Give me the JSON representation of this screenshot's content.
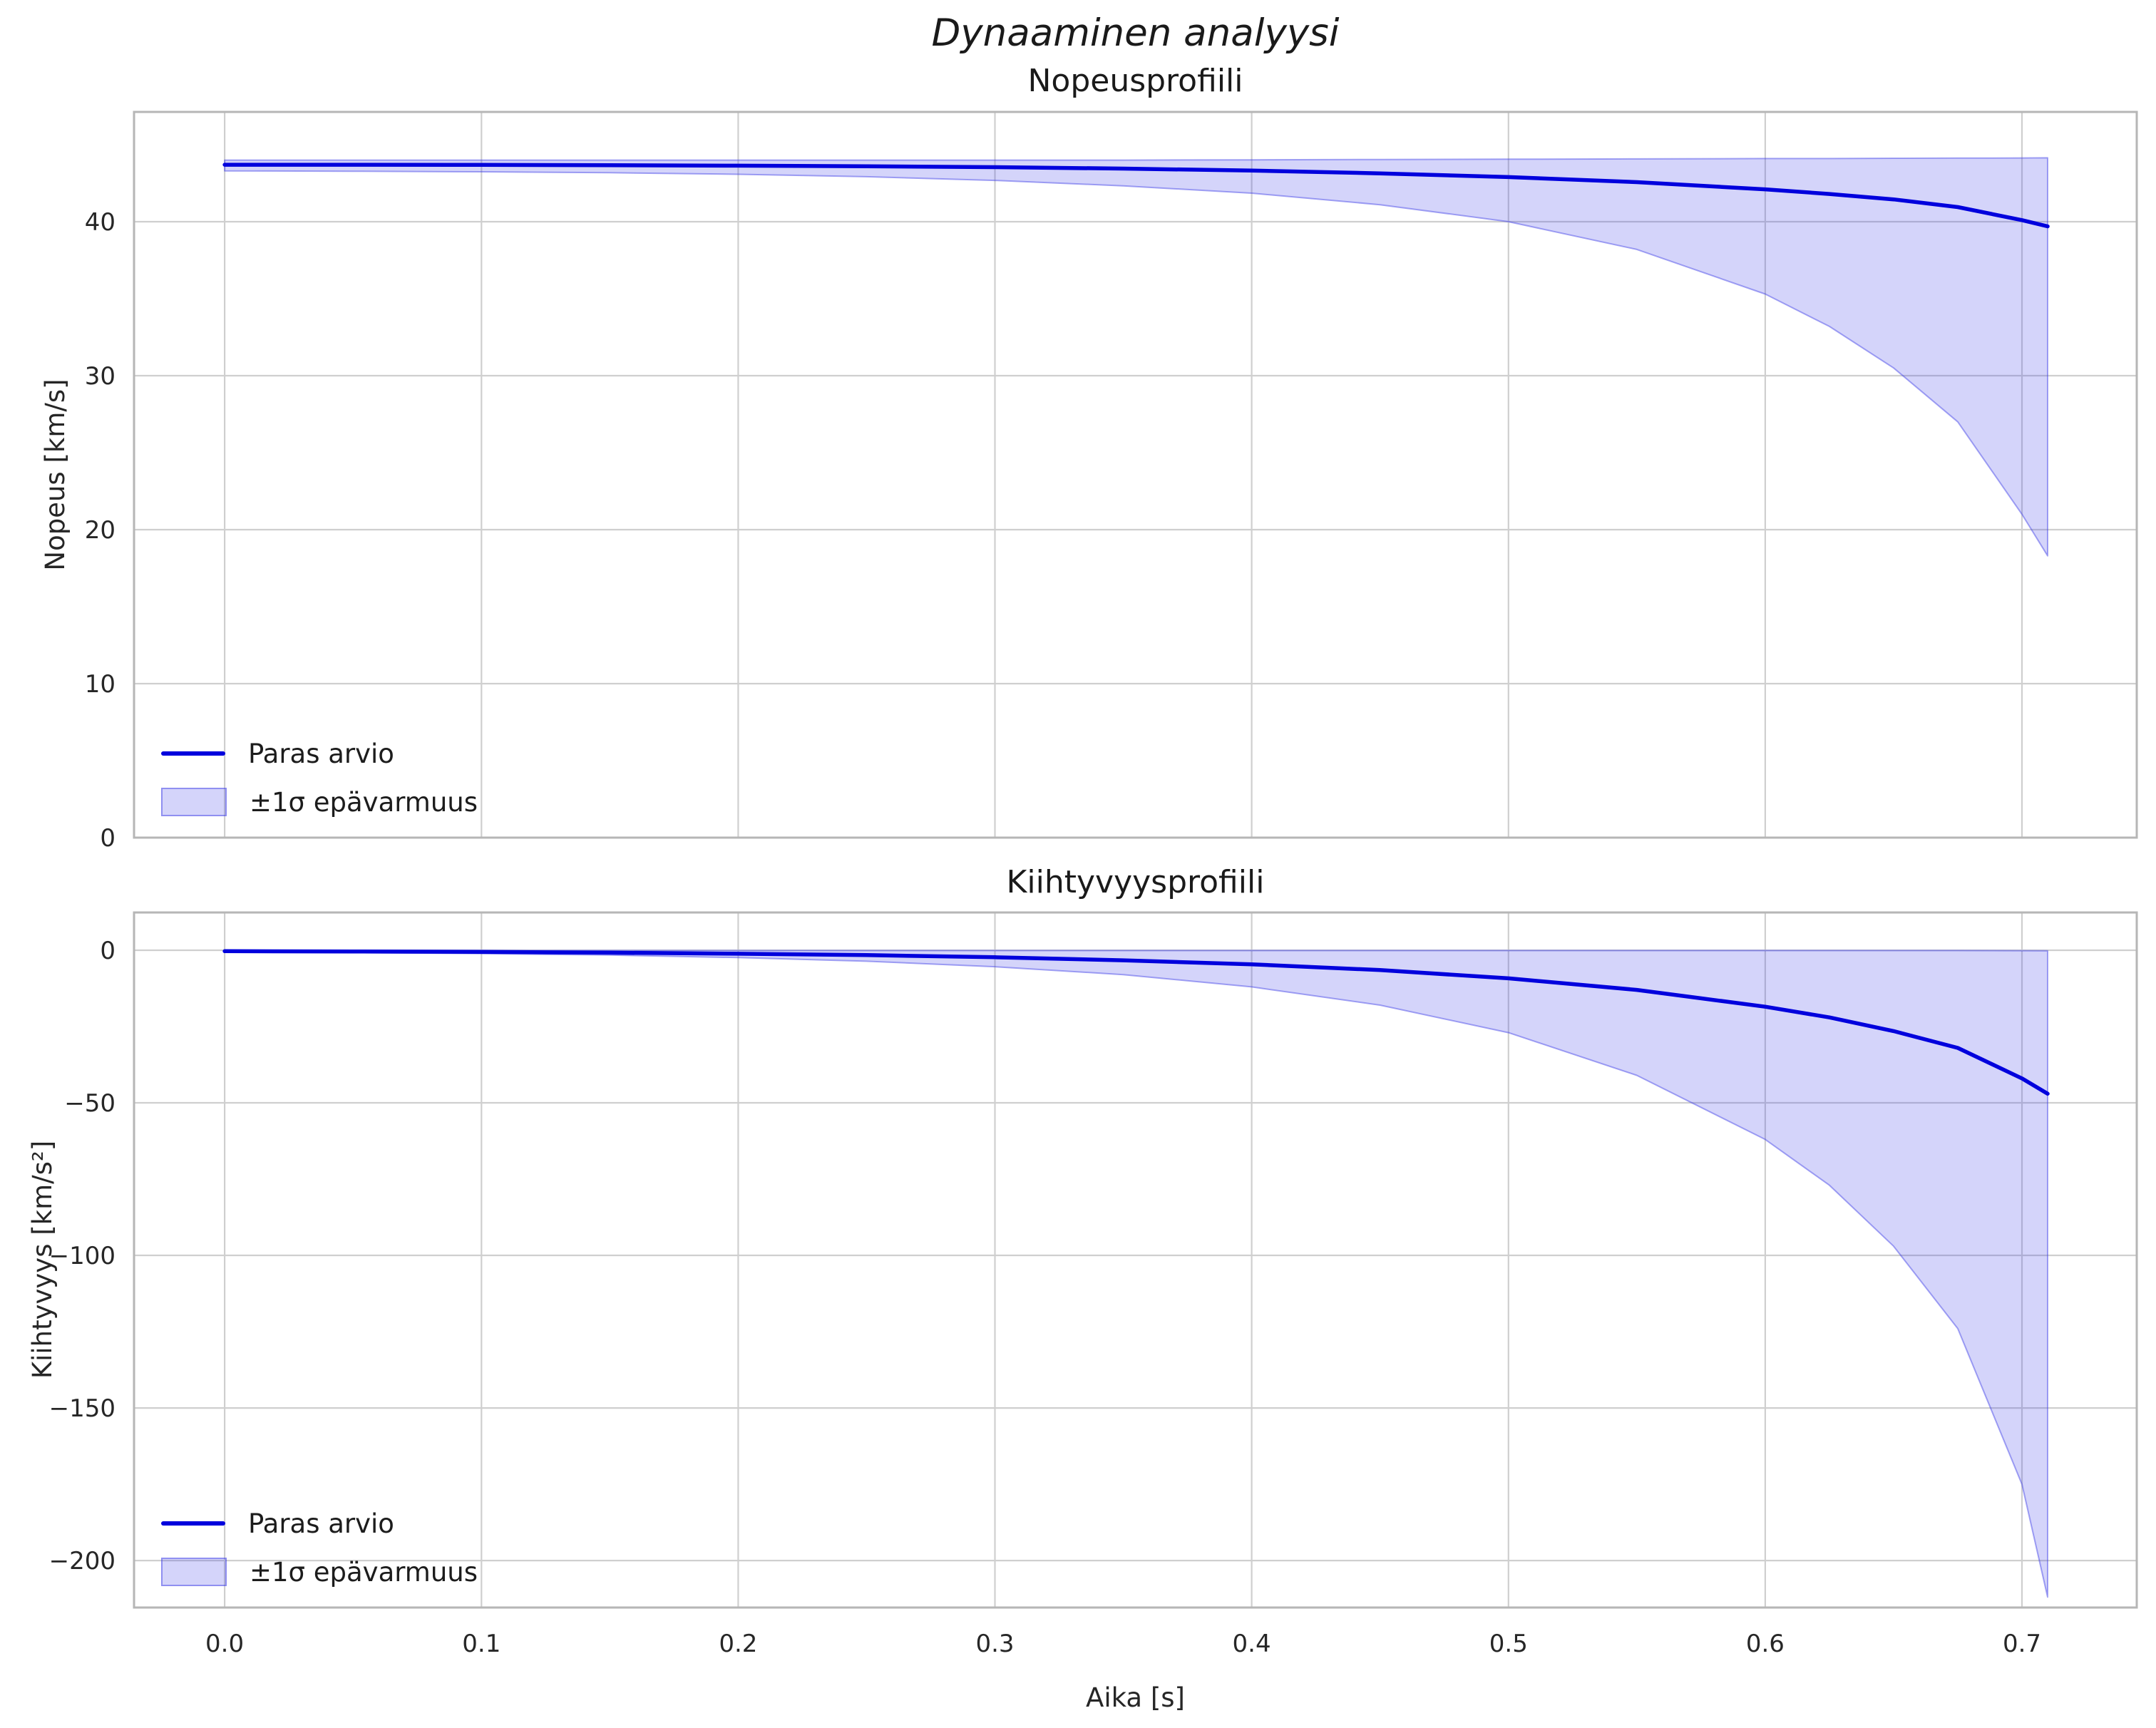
{
  "figure": {
    "suptitle": "Dynaaminen analyysi"
  },
  "colors": {
    "line": "#0000dd",
    "band_fill": "rgba(60,60,230,0.22)",
    "band_edge": "rgba(60,60,230,0.45)",
    "grid": "#cfcfcf",
    "spine": "#b6b6b6",
    "tick_text": "#262626"
  },
  "chart_data": [
    {
      "type": "line",
      "title": "Nopeusprofiili",
      "xlabel": "",
      "ylabel": "Nopeus [km/s]",
      "x": [
        0,
        0.05,
        0.1,
        0.15,
        0.2,
        0.25,
        0.3,
        0.35,
        0.4,
        0.45,
        0.5,
        0.55,
        0.6,
        0.625,
        0.65,
        0.675,
        0.7,
        0.71
      ],
      "series": [
        {
          "name": "Paras arvio",
          "style": "line",
          "values": [
            43.7,
            43.7,
            43.69,
            43.67,
            43.64,
            43.6,
            43.54,
            43.45,
            43.32,
            43.14,
            42.9,
            42.57,
            42.1,
            41.8,
            41.45,
            40.95,
            40.1,
            39.7
          ]
        },
        {
          "name": "±1σ epävarmuus",
          "style": "band",
          "upper": [
            44.0,
            44.0,
            44.0,
            44.0,
            44.0,
            44.0,
            44.0,
            44.0,
            44.02,
            44.04,
            44.06,
            44.08,
            44.1,
            44.1,
            44.12,
            44.13,
            44.14,
            44.15
          ],
          "lower": [
            43.3,
            43.28,
            43.24,
            43.18,
            43.08,
            42.92,
            42.68,
            42.33,
            41.85,
            41.1,
            40.0,
            38.2,
            35.3,
            33.2,
            30.5,
            27.0,
            21.0,
            18.3
          ]
        }
      ],
      "xlim": [
        -0.0353,
        0.7447
      ],
      "ylim": [
        0,
        47.13
      ],
      "xtick_values": [
        0.0,
        0.1,
        0.2,
        0.3,
        0.4,
        0.5,
        0.6,
        0.7
      ],
      "xtick_labels": [
        "0.0",
        "0.1",
        "0.2",
        "0.3",
        "0.4",
        "0.5",
        "0.6",
        "0.7"
      ],
      "show_xtick_labels": false,
      "ytick_values": [
        0,
        10,
        20,
        30,
        40
      ],
      "ytick_labels": [
        "0",
        "10",
        "20",
        "30",
        "40"
      ],
      "grid": true,
      "legend_position": "lower left",
      "legend": [
        "Paras arvio",
        "±1σ epävarmuus"
      ]
    },
    {
      "type": "line",
      "title": "Kiihtyvyysprofiili",
      "xlabel": "Aika [s]",
      "ylabel": "Kiihtyvyys [km/s²]",
      "x": [
        0,
        0.05,
        0.1,
        0.15,
        0.2,
        0.25,
        0.3,
        0.35,
        0.4,
        0.45,
        0.5,
        0.55,
        0.6,
        0.625,
        0.65,
        0.675,
        0.7,
        0.71
      ],
      "series": [
        {
          "name": "Paras arvio",
          "style": "line",
          "values": [
            -0.3,
            -0.4,
            -0.55,
            -0.8,
            -1.15,
            -1.6,
            -2.3,
            -3.3,
            -4.6,
            -6.5,
            -9.2,
            -13.0,
            -18.5,
            -22.0,
            -26.5,
            -32.0,
            -42.0,
            -47.0
          ]
        },
        {
          "name": "±1σ epävarmuus",
          "style": "band",
          "upper": [
            -0.1,
            -0.1,
            -0.1,
            -0.1,
            -0.1,
            -0.1,
            -0.1,
            -0.1,
            -0.1,
            -0.1,
            -0.1,
            -0.1,
            -0.1,
            -0.1,
            -0.1,
            -0.1,
            -0.15,
            -0.2
          ],
          "lower": [
            -0.6,
            -0.8,
            -1.1,
            -1.6,
            -2.4,
            -3.6,
            -5.4,
            -8.0,
            -12.0,
            -18.0,
            -27.0,
            -41.0,
            -62.0,
            -77.0,
            -97.0,
            -124.0,
            -175.0,
            -212.0
          ]
        }
      ],
      "xlim": [
        -0.0353,
        0.7447
      ],
      "ylim": [
        -215.4,
        12.38
      ],
      "xtick_values": [
        0.0,
        0.1,
        0.2,
        0.3,
        0.4,
        0.5,
        0.6,
        0.7
      ],
      "xtick_labels": [
        "0.0",
        "0.1",
        "0.2",
        "0.3",
        "0.4",
        "0.5",
        "0.6",
        "0.7"
      ],
      "show_xtick_labels": true,
      "ytick_values": [
        0,
        -50,
        -100,
        -150,
        -200
      ],
      "ytick_labels": [
        "0",
        "−50",
        "−100",
        "−150",
        "−200"
      ],
      "grid": true,
      "legend_position": "lower left",
      "legend": [
        "Paras arvio",
        "±1σ epävarmuus"
      ]
    }
  ]
}
